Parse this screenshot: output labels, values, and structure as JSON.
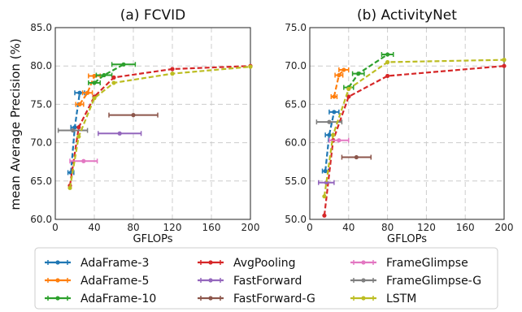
{
  "ylabel": "mean Average Precision (%)",
  "colors": {
    "AdaFrame-3": "#1f77b4",
    "AdaFrame-5": "#ff7f0e",
    "AdaFrame-10": "#2ca02c",
    "AvgPooling": "#d62728",
    "FastForward": "#9467bd",
    "FastForward-G": "#8c564b",
    "FrameGlimpse": "#e377c2",
    "FrameGlimpse-G": "#7f7f7f",
    "LSTM": "#bcbd22"
  },
  "legend": [
    "AdaFrame-3",
    "AvgPooling",
    "FrameGlimpse",
    "AdaFrame-5",
    "FastForward",
    "FrameGlimpse-G",
    "AdaFrame-10",
    "FastForward-G",
    "LSTM"
  ],
  "chart_data": [
    {
      "type": "line",
      "title": "(a) FCVID",
      "xlabel": "GFLOPs",
      "xlim": [
        0,
        200
      ],
      "ylim": [
        60,
        85
      ],
      "xticks": [
        0,
        40,
        80,
        120,
        160,
        200
      ],
      "yticks": [
        60.0,
        65.0,
        70.0,
        75.0,
        80.0,
        85.0
      ],
      "xtick_labels": [
        "0",
        "40",
        "80",
        "120",
        "160",
        "200"
      ],
      "ytick_labels": [
        "60.0",
        "65.0",
        "70.0",
        "75.0",
        "80.0",
        "85.0"
      ],
      "grid": true,
      "series": [
        {
          "name": "AdaFrame-3",
          "style": "dashed",
          "x": [
            16,
            20,
            25
          ],
          "y": [
            66.1,
            72.0,
            76.5
          ],
          "xerr": [
            3,
            4,
            5
          ]
        },
        {
          "name": "AdaFrame-5",
          "style": "dashed",
          "x": [
            25,
            33,
            40
          ],
          "y": [
            75.0,
            76.5,
            78.7
          ],
          "xerr": [
            4,
            5,
            6
          ]
        },
        {
          "name": "AdaFrame-10",
          "style": "dashed",
          "x": [
            40,
            50,
            70
          ],
          "y": [
            77.8,
            78.8,
            80.2
          ],
          "xerr": [
            6,
            8,
            12
          ]
        },
        {
          "name": "AvgPooling",
          "style": "dashed",
          "x": [
            15,
            24,
            40,
            60,
            120,
            200
          ],
          "y": [
            64.4,
            72.0,
            76.0,
            78.5,
            79.6,
            80.0
          ]
        },
        {
          "name": "FastForward",
          "style": "solid",
          "x": [
            66
          ],
          "y": [
            71.2
          ],
          "xerr": [
            22
          ]
        },
        {
          "name": "FastForward-G",
          "style": "solid",
          "x": [
            80
          ],
          "y": [
            73.6
          ],
          "xerr": [
            25
          ]
        },
        {
          "name": "FrameGlimpse",
          "style": "solid",
          "x": [
            29
          ],
          "y": [
            67.6
          ],
          "xerr": [
            14
          ]
        },
        {
          "name": "FrameGlimpse-G",
          "style": "solid",
          "x": [
            18
          ],
          "y": [
            71.6
          ],
          "xerr": [
            15
          ]
        },
        {
          "name": "LSTM",
          "style": "dashed",
          "x": [
            15,
            24,
            40,
            60,
            120,
            200
          ],
          "y": [
            64.1,
            70.8,
            75.8,
            77.8,
            79.0,
            79.9
          ]
        }
      ]
    },
    {
      "type": "line",
      "title": "(b) ActivityNet",
      "xlabel": "GFLOPs",
      "xlim": [
        0,
        200
      ],
      "ylim": [
        50,
        75
      ],
      "xticks": [
        0,
        40,
        80,
        120,
        160,
        200
      ],
      "yticks": [
        50.0,
        55.0,
        60.0,
        65.0,
        70.0,
        75.0
      ],
      "xtick_labels": [
        "0",
        "40",
        "80",
        "120",
        "160",
        "200"
      ],
      "ytick_labels": [
        "50.0",
        "55.0",
        "60.0",
        "65.0",
        "70.0",
        "75.0"
      ],
      "grid": true,
      "series": [
        {
          "name": "AdaFrame-3",
          "style": "dashed",
          "x": [
            16,
            20,
            25
          ],
          "y": [
            56.3,
            61.0,
            64.0
          ],
          "xerr": [
            3,
            4,
            5
          ]
        },
        {
          "name": "AdaFrame-5",
          "style": "dashed",
          "x": [
            25,
            30,
            35
          ],
          "y": [
            66.0,
            68.8,
            69.5
          ],
          "xerr": [
            3,
            4,
            5
          ]
        },
        {
          "name": "AdaFrame-10",
          "style": "dashed",
          "x": [
            40,
            50,
            80
          ],
          "y": [
            67.2,
            69.0,
            71.5
          ],
          "xerr": [
            5,
            6,
            6
          ]
        },
        {
          "name": "AvgPooling",
          "style": "dashed",
          "x": [
            15,
            24,
            40,
            80,
            200
          ],
          "y": [
            50.5,
            60.3,
            66.0,
            68.7,
            70.0
          ]
        },
        {
          "name": "FastForward",
          "style": "solid",
          "x": [
            17
          ],
          "y": [
            54.8
          ],
          "xerr": [
            8
          ]
        },
        {
          "name": "FastForward-G",
          "style": "solid",
          "x": [
            48
          ],
          "y": [
            58.1
          ],
          "xerr": [
            15
          ]
        },
        {
          "name": "FrameGlimpse",
          "style": "solid",
          "x": [
            30
          ],
          "y": [
            60.3
          ],
          "xerr": [
            10
          ]
        },
        {
          "name": "FrameGlimpse-G",
          "style": "solid",
          "x": [
            20
          ],
          "y": [
            62.7
          ],
          "xerr": [
            13
          ]
        },
        {
          "name": "LSTM",
          "style": "dashed",
          "x": [
            15,
            24,
            40,
            80,
            200
          ],
          "y": [
            53.0,
            61.0,
            67.0,
            70.5,
            70.8
          ]
        }
      ]
    }
  ]
}
